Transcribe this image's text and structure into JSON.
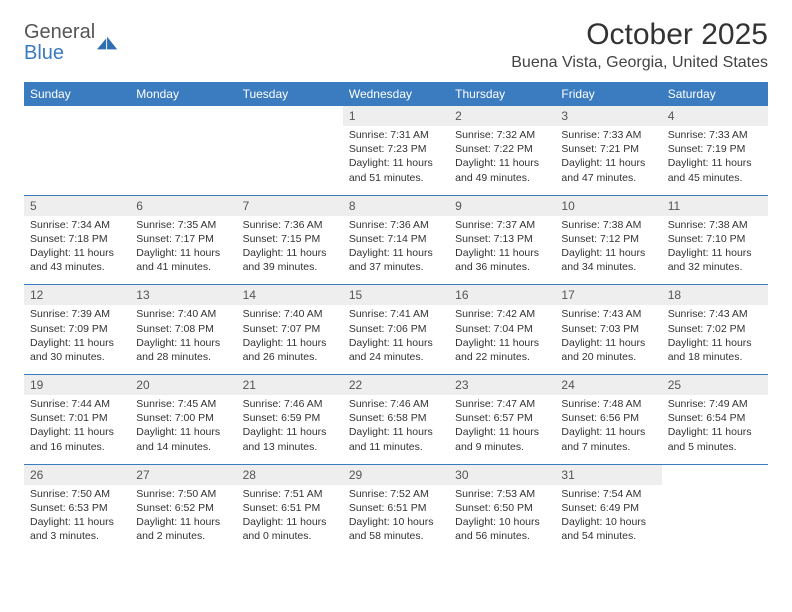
{
  "brand": {
    "name_line1": "General",
    "name_line2": "Blue",
    "mark_color": "#2f6fb0"
  },
  "title": {
    "month": "October 2025",
    "location": "Buena Vista, Georgia, United States"
  },
  "styling": {
    "header_bg": "#3b7bbf",
    "header_fg": "#ffffff",
    "daynum_bg": "#eeeeee",
    "daynum_fg": "#555555",
    "body_fg": "#333333",
    "divider_color": "#3b7bbf",
    "page_bg": "#ffffff",
    "weekday_fontsize": 12,
    "daynum_fontsize": 12,
    "body_fontsize": 10.5
  },
  "weekdays": [
    "Sunday",
    "Monday",
    "Tuesday",
    "Wednesday",
    "Thursday",
    "Friday",
    "Saturday"
  ],
  "weeks": [
    [
      null,
      null,
      null,
      {
        "n": "1",
        "sr": "7:31 AM",
        "ss": "7:23 PM",
        "dl": "11 hours and 51 minutes."
      },
      {
        "n": "2",
        "sr": "7:32 AM",
        "ss": "7:22 PM",
        "dl": "11 hours and 49 minutes."
      },
      {
        "n": "3",
        "sr": "7:33 AM",
        "ss": "7:21 PM",
        "dl": "11 hours and 47 minutes."
      },
      {
        "n": "4",
        "sr": "7:33 AM",
        "ss": "7:19 PM",
        "dl": "11 hours and 45 minutes."
      }
    ],
    [
      {
        "n": "5",
        "sr": "7:34 AM",
        "ss": "7:18 PM",
        "dl": "11 hours and 43 minutes."
      },
      {
        "n": "6",
        "sr": "7:35 AM",
        "ss": "7:17 PM",
        "dl": "11 hours and 41 minutes."
      },
      {
        "n": "7",
        "sr": "7:36 AM",
        "ss": "7:15 PM",
        "dl": "11 hours and 39 minutes."
      },
      {
        "n": "8",
        "sr": "7:36 AM",
        "ss": "7:14 PM",
        "dl": "11 hours and 37 minutes."
      },
      {
        "n": "9",
        "sr": "7:37 AM",
        "ss": "7:13 PM",
        "dl": "11 hours and 36 minutes."
      },
      {
        "n": "10",
        "sr": "7:38 AM",
        "ss": "7:12 PM",
        "dl": "11 hours and 34 minutes."
      },
      {
        "n": "11",
        "sr": "7:38 AM",
        "ss": "7:10 PM",
        "dl": "11 hours and 32 minutes."
      }
    ],
    [
      {
        "n": "12",
        "sr": "7:39 AM",
        "ss": "7:09 PM",
        "dl": "11 hours and 30 minutes."
      },
      {
        "n": "13",
        "sr": "7:40 AM",
        "ss": "7:08 PM",
        "dl": "11 hours and 28 minutes."
      },
      {
        "n": "14",
        "sr": "7:40 AM",
        "ss": "7:07 PM",
        "dl": "11 hours and 26 minutes."
      },
      {
        "n": "15",
        "sr": "7:41 AM",
        "ss": "7:06 PM",
        "dl": "11 hours and 24 minutes."
      },
      {
        "n": "16",
        "sr": "7:42 AM",
        "ss": "7:04 PM",
        "dl": "11 hours and 22 minutes."
      },
      {
        "n": "17",
        "sr": "7:43 AM",
        "ss": "7:03 PM",
        "dl": "11 hours and 20 minutes."
      },
      {
        "n": "18",
        "sr": "7:43 AM",
        "ss": "7:02 PM",
        "dl": "11 hours and 18 minutes."
      }
    ],
    [
      {
        "n": "19",
        "sr": "7:44 AM",
        "ss": "7:01 PM",
        "dl": "11 hours and 16 minutes."
      },
      {
        "n": "20",
        "sr": "7:45 AM",
        "ss": "7:00 PM",
        "dl": "11 hours and 14 minutes."
      },
      {
        "n": "21",
        "sr": "7:46 AM",
        "ss": "6:59 PM",
        "dl": "11 hours and 13 minutes."
      },
      {
        "n": "22",
        "sr": "7:46 AM",
        "ss": "6:58 PM",
        "dl": "11 hours and 11 minutes."
      },
      {
        "n": "23",
        "sr": "7:47 AM",
        "ss": "6:57 PM",
        "dl": "11 hours and 9 minutes."
      },
      {
        "n": "24",
        "sr": "7:48 AM",
        "ss": "6:56 PM",
        "dl": "11 hours and 7 minutes."
      },
      {
        "n": "25",
        "sr": "7:49 AM",
        "ss": "6:54 PM",
        "dl": "11 hours and 5 minutes."
      }
    ],
    [
      {
        "n": "26",
        "sr": "7:50 AM",
        "ss": "6:53 PM",
        "dl": "11 hours and 3 minutes."
      },
      {
        "n": "27",
        "sr": "7:50 AM",
        "ss": "6:52 PM",
        "dl": "11 hours and 2 minutes."
      },
      {
        "n": "28",
        "sr": "7:51 AM",
        "ss": "6:51 PM",
        "dl": "11 hours and 0 minutes."
      },
      {
        "n": "29",
        "sr": "7:52 AM",
        "ss": "6:51 PM",
        "dl": "10 hours and 58 minutes."
      },
      {
        "n": "30",
        "sr": "7:53 AM",
        "ss": "6:50 PM",
        "dl": "10 hours and 56 minutes."
      },
      {
        "n": "31",
        "sr": "7:54 AM",
        "ss": "6:49 PM",
        "dl": "10 hours and 54 minutes."
      },
      null
    ]
  ],
  "labels": {
    "sunrise": "Sunrise:",
    "sunset": "Sunset:",
    "daylight": "Daylight:"
  }
}
